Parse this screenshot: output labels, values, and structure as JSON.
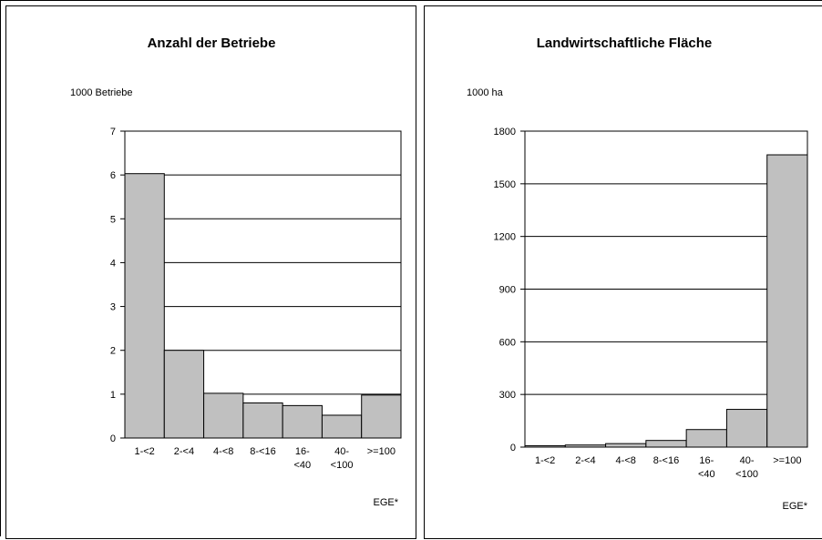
{
  "chart_data": [
    {
      "type": "bar",
      "title": "Anzahl der Betriebe",
      "ylabel": "1000 Betriebe",
      "xlabel": "EGE*",
      "categories": [
        "1-<2",
        "2-<4",
        "4-<8",
        "8-<16",
        "16-<40",
        "40-<100",
        ">=100"
      ],
      "category_lines": [
        [
          "1-<2"
        ],
        [
          "2-<4"
        ],
        [
          "4-<8"
        ],
        [
          "8-<16"
        ],
        [
          "16-",
          "<40"
        ],
        [
          "40-",
          "<100"
        ],
        [
          ">=100"
        ]
      ],
      "values": [
        6.03,
        2.0,
        1.02,
        0.8,
        0.74,
        0.52,
        0.98
      ],
      "ylim": [
        0,
        7
      ],
      "yticks": [
        0,
        1,
        2,
        3,
        4,
        5,
        6,
        7
      ],
      "grid": true,
      "bar_color": "#c0c0c0"
    },
    {
      "type": "bar",
      "title": "Landwirtschaftliche Fläche",
      "ylabel": "1000 ha",
      "xlabel": "EGE*",
      "categories": [
        "1-<2",
        "2-<4",
        "4-<8",
        "8-<16",
        "16-<40",
        "40-<100",
        ">=100"
      ],
      "category_lines": [
        [
          "1-<2"
        ],
        [
          "2-<4"
        ],
        [
          "4-<8"
        ],
        [
          "8-<16"
        ],
        [
          "16-",
          "<40"
        ],
        [
          "40-",
          "<100"
        ],
        [
          ">=100"
        ]
      ],
      "values": [
        8,
        12,
        20,
        38,
        100,
        215,
        1665
      ],
      "ylim": [
        0,
        1800
      ],
      "yticks": [
        0,
        300,
        600,
        900,
        1200,
        1500,
        1800
      ],
      "grid": true,
      "bar_color": "#c0c0c0"
    }
  ]
}
